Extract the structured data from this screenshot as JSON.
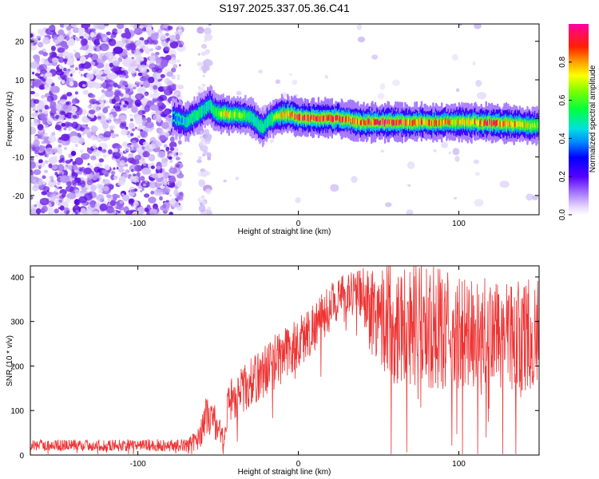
{
  "title": "S197.2025.337.05.36.C41",
  "chart_data": [
    {
      "type": "heatmap",
      "name": "spectrogram",
      "xlabel": "Height of straight line (km)",
      "ylabel": "Frequency (Hz)",
      "xlim": [
        -167,
        150
      ],
      "ylim": [
        -25,
        24.5
      ],
      "xticks": [
        -100,
        0,
        100
      ],
      "yticks": [
        -20,
        -10,
        0,
        10,
        20
      ],
      "colorbar": {
        "label": "Normalized spectral amplitude",
        "range": [
          0,
          1
        ],
        "ticks": [
          "0.0",
          "0.2",
          "0.4",
          "0.6",
          "0.8"
        ],
        "tick_values": [
          0,
          0.2,
          0.4,
          0.6,
          0.8
        ]
      },
      "noise_region_x": [
        -167,
        -73
      ],
      "noise_sparse_x": [
        -62,
        -55
      ],
      "signal_track": [
        {
          "x": -78,
          "f": 0.5,
          "a": 0.35
        },
        {
          "x": -70,
          "f": -1.0,
          "a": 0.45
        },
        {
          "x": -62,
          "f": 1.0,
          "a": 0.5
        },
        {
          "x": -55,
          "f": 3.5,
          "a": 0.45
        },
        {
          "x": -52,
          "f": 1.5,
          "a": 0.55
        },
        {
          "x": -45,
          "f": 1.0,
          "a": 0.7
        },
        {
          "x": -35,
          "f": 0.8,
          "a": 0.6
        },
        {
          "x": -30,
          "f": 0.5,
          "a": 0.5
        },
        {
          "x": -22,
          "f": -2.5,
          "a": 0.5
        },
        {
          "x": -18,
          "f": -0.5,
          "a": 0.5
        },
        {
          "x": -12,
          "f": 0.8,
          "a": 0.7
        },
        {
          "x": -5,
          "f": 1.0,
          "a": 0.8
        },
        {
          "x": 0,
          "f": 0.3,
          "a": 0.9
        },
        {
          "x": 10,
          "f": 0.0,
          "a": 0.9
        },
        {
          "x": 25,
          "f": 0.0,
          "a": 0.85
        },
        {
          "x": 40,
          "f": -1.0,
          "a": 0.85
        },
        {
          "x": 55,
          "f": -1.0,
          "a": 0.9
        },
        {
          "x": 70,
          "f": -1.0,
          "a": 0.85
        },
        {
          "x": 85,
          "f": -1.0,
          "a": 0.8
        },
        {
          "x": 100,
          "f": -1.0,
          "a": 0.75
        },
        {
          "x": 110,
          "f": -1.0,
          "a": 0.8
        },
        {
          "x": 120,
          "f": -1.2,
          "a": 0.85
        },
        {
          "x": 135,
          "f": -1.5,
          "a": 0.8
        },
        {
          "x": 145,
          "f": -1.8,
          "a": 0.7
        },
        {
          "x": 150,
          "f": -2.0,
          "a": 0.6
        }
      ]
    },
    {
      "type": "line",
      "name": "snr",
      "xlabel": "Height of straight line (km)",
      "ylabel": "SNR (10 * v/v)",
      "xlim": [
        -167,
        150
      ],
      "ylim": [
        0,
        425
      ],
      "xticks": [
        -100,
        0,
        100
      ],
      "yticks": [
        0,
        100,
        200,
        300,
        400
      ],
      "color": "#ee3333",
      "envelope": [
        {
          "x": -167,
          "mean": 22,
          "spread": 18
        },
        {
          "x": -70,
          "mean": 22,
          "spread": 20
        },
        {
          "x": -62,
          "mean": 35,
          "spread": 40
        },
        {
          "x": -58,
          "mean": 90,
          "spread": 60
        },
        {
          "x": -52,
          "mean": 75,
          "spread": 60
        },
        {
          "x": -46,
          "mean": 30,
          "spread": 25
        },
        {
          "x": -44,
          "mean": 120,
          "spread": 70
        },
        {
          "x": -30,
          "mean": 160,
          "spread": 80
        },
        {
          "x": -15,
          "mean": 210,
          "spread": 90
        },
        {
          "x": 0,
          "mean": 250,
          "spread": 90
        },
        {
          "x": 15,
          "mean": 310,
          "spread": 80
        },
        {
          "x": 25,
          "mean": 355,
          "spread": 70
        },
        {
          "x": 35,
          "mean": 370,
          "spread": 60
        },
        {
          "x": 45,
          "mean": 330,
          "spread": 150
        },
        {
          "x": 60,
          "mean": 300,
          "spread": 200
        },
        {
          "x": 80,
          "mean": 290,
          "spread": 200
        },
        {
          "x": 100,
          "mean": 270,
          "spread": 190
        },
        {
          "x": 120,
          "mean": 270,
          "spread": 180
        },
        {
          "x": 150,
          "mean": 270,
          "spread": 180
        }
      ]
    }
  ]
}
